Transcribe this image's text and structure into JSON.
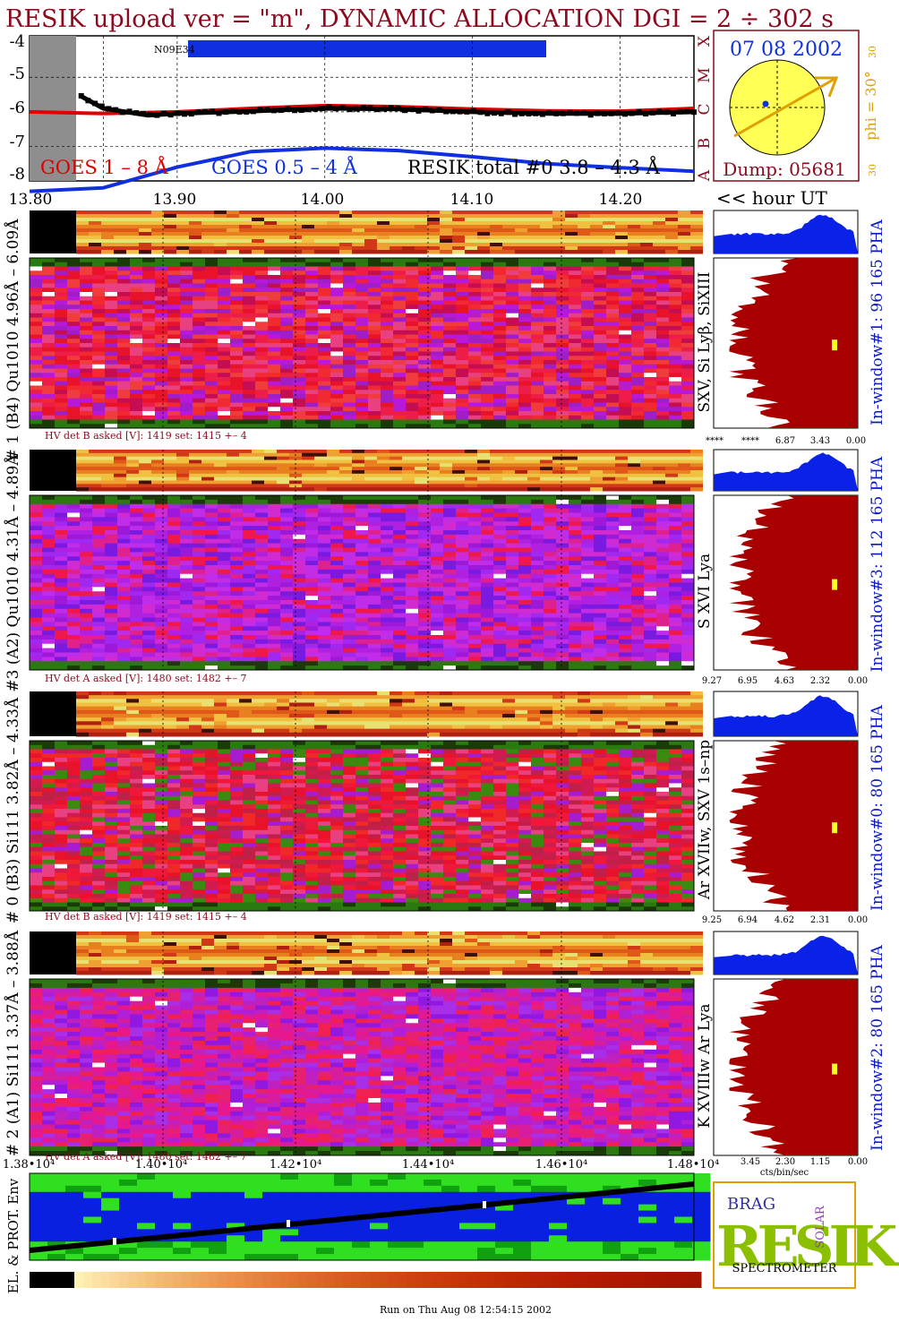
{
  "header": {
    "title": "RESIK upload ver = \"m\", DYNAMIC ALLOCATION  DGI =   2 ÷ 302 s",
    "footer": "Run on Thu Aug 08 12:54:15 2002"
  },
  "colors": {
    "title": "#8b0a1e",
    "goes_long": "#e00000",
    "goes_short": "#1030e0",
    "resik_total": "#000000",
    "pha_blue": "#0a22e8",
    "pha_dark_red": "#a80000",
    "window_label": "#0a18c8",
    "sun_fill": "#ffff55",
    "sun_arrow": "#e0a000",
    "flag_bar": "#1030e0"
  },
  "goes_panel": {
    "y_ticks": [
      "-4",
      "-5",
      "-6",
      "-7",
      "-8"
    ],
    "x_ticks": [
      "13.80",
      "13.90",
      "14.00",
      "14.10",
      "14.20"
    ],
    "flag_label": "N09E34",
    "legend_goes18": "GOES 1 – 8 Å",
    "legend_goes054": "GOES 0.5 – 4 Å",
    "legend_resik": "RESIK total #0  3.8 – 4.3 Å",
    "hour_label": "<< hour UT",
    "class_letters": [
      "X",
      "M",
      "C",
      "B",
      "A"
    ]
  },
  "sun_panel": {
    "date": "07 08 2002",
    "dump": "Dump: 05681",
    "phi_label": "phi = 30°",
    "side_top": "30",
    "side_bottom": "30"
  },
  "detectors": [
    {
      "left_label": "# 1 (B4) Qu1010 4.96Å – 6.09Å",
      "line_label": "SXV, Si Lyβ, SiXIII",
      "window_label": "In-window#1:   96 165  PHA",
      "hv_text": "HV det B asked [V]:  1419 set:  1415 +–    4",
      "pha_ticks": [
        "****",
        "****",
        "6.87",
        "3.43",
        "0.00"
      ]
    },
    {
      "left_label": "#3 (A2) Qu1010  4.31Å – 4.89Å",
      "line_label": "S XVI Lya",
      "window_label": "In-window#3:  112 165  PHA",
      "hv_text": "HV det A asked [V]:  1480 set:  1482 +–    7",
      "pha_ticks": [
        "9.27",
        "6.95",
        "4.63",
        "2.32",
        "0.00"
      ]
    },
    {
      "left_label": "# 0 (B3) Si111  3.82Å – 4.33Å",
      "line_label": "Ar XVIIw,  SXV 1s–np",
      "window_label": "In-window#0:   80 165  PHA",
      "hv_text": "HV det B asked [V]:  1419 set:  1415 +–    4",
      "pha_ticks": [
        "9.25",
        "6.94",
        "4.62",
        "2.31",
        "0.00"
      ]
    },
    {
      "left_label": "# 2 (A1) Si111  3.37Å –  3.88Å",
      "line_label": "K XVIIIw  Ar Lya",
      "window_label": "In-window#2:   80 165  PHA",
      "hv_text": "HV det A asked [V]:  1480 set:  1482 +–    7",
      "pha_ticks": [
        "3.45",
        "2.30",
        "1.15",
        "0.00"
      ]
    }
  ],
  "bottom_axis": {
    "ticks": [
      "1.38•10⁴",
      "1.40•10⁴",
      "1.42•10⁴",
      "1.44•10⁴",
      "1.46•10⁴",
      "1.48•10⁴"
    ],
    "pha_unit": "cts/bin/sec"
  },
  "env_panel": {
    "label": "EL. & PROT. Env"
  },
  "logo": {
    "letters": "RESIK",
    "small_top": "BRAG",
    "small_right": "SOLAR",
    "word": "SPECTROMETER"
  },
  "chart_data": {
    "type": "line",
    "title": "RESIK upload ver = \"m\", DYNAMIC ALLOCATION  DGI =   2 ÷ 302 s",
    "xlabel": "<< hour UT",
    "xlim": [
      13.8,
      14.25
    ],
    "ylim": [
      -8,
      -3.8
    ],
    "y_scale": "log10 flux",
    "series": [
      {
        "name": "GOES 1 – 8 Å",
        "x": [
          13.8,
          13.85,
          13.9,
          13.95,
          14.0,
          14.05,
          14.1,
          14.15,
          14.2,
          14.25
        ],
        "values": [
          -6.0,
          -6.05,
          -6.0,
          -5.9,
          -5.82,
          -5.85,
          -5.92,
          -5.97,
          -5.98,
          -5.9
        ]
      },
      {
        "name": "GOES 0.5 – 4 Å",
        "x": [
          13.8,
          13.85,
          13.9,
          13.95,
          14.0,
          14.05,
          14.1,
          14.15,
          14.2,
          14.25
        ],
        "values": [
          -8.3,
          -8.2,
          -7.6,
          -7.15,
          -7.05,
          -7.12,
          -7.3,
          -7.5,
          -7.62,
          -7.72
        ]
      },
      {
        "name": "RESIK total #0  3.8 – 4.3 Å",
        "x": [
          13.835,
          13.85,
          13.88,
          13.9,
          13.95,
          14.0,
          14.05,
          14.1,
          14.15,
          14.2,
          14.25
        ],
        "values": [
          -5.55,
          -5.9,
          -6.1,
          -6.05,
          -5.98,
          -5.9,
          -5.92,
          -6.0,
          -6.05,
          -6.05,
          -6.0
        ]
      }
    ]
  }
}
